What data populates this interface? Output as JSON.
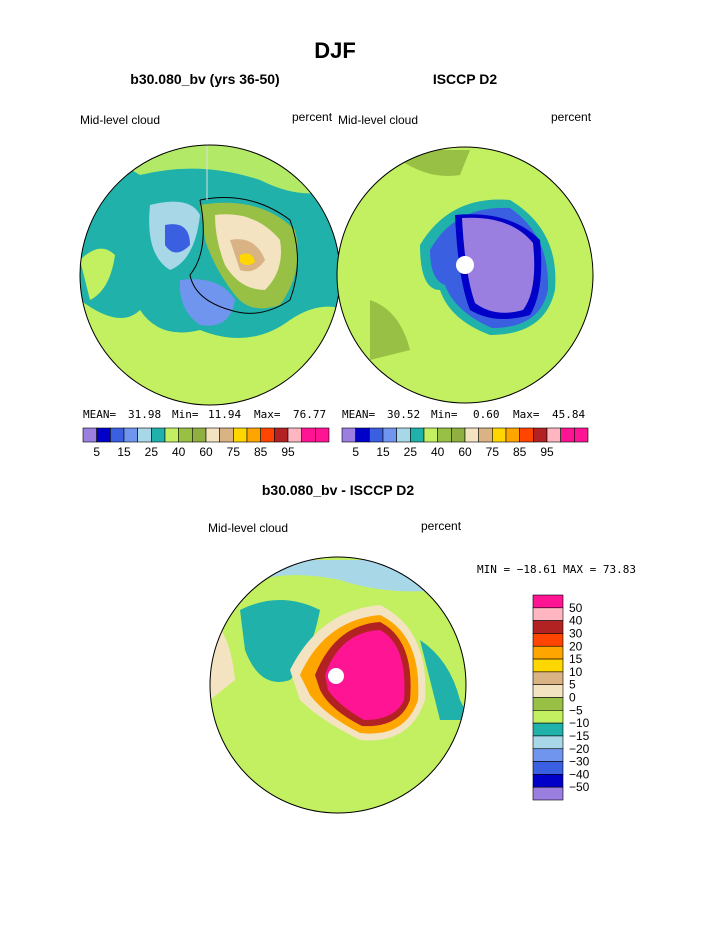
{
  "title": "DJF",
  "panels": [
    {
      "title": "b30.080_bv (yrs 36-50)",
      "left_label": "Mid-level cloud",
      "right_label": "percent",
      "stats": {
        "mean_label": "MEAN=",
        "mean": "31.98",
        "min_label": "Min=",
        "min": "11.94",
        "max_label": "Max=",
        "max": "76.77"
      }
    },
    {
      "title": "ISCCP D2",
      "left_label": "Mid-level cloud",
      "right_label": "percent",
      "stats": {
        "mean_label": "MEAN=",
        "mean": "30.52",
        "min_label": "Min=",
        "min": "0.60",
        "max_label": "Max=",
        "max": "45.84"
      }
    }
  ],
  "colorbar": {
    "labels": [
      5,
      15,
      25,
      40,
      60,
      75,
      85,
      95
    ],
    "colors": [
      "#9b7fe0",
      "#0000c8",
      "#3a5fe0",
      "#6f95ee",
      "#a8d8e8",
      "#20b2aa",
      "#c2f060",
      "#98c045",
      "#8fb040",
      "#f3e3c0",
      "#d9b383",
      "#ffd700",
      "#ffa500",
      "#ff4500",
      "#b22222",
      "#ffb6c1",
      "#ff1493",
      "#ff1493"
    ]
  },
  "difference": {
    "title": "b30.080_bv - ISCCP D2",
    "left_label": "Mid-level cloud",
    "right_label": "percent",
    "range_text": "MIN = −18.61 MAX =  73.83",
    "colorbar": {
      "labels": [
        "50",
        "40",
        "30",
        "20",
        "15",
        "10",
        "5",
        "0",
        "−5",
        "−10",
        "−15",
        "−20",
        "−30",
        "−40",
        "−50"
      ],
      "colors": [
        "#ff1493",
        "#ffb6c1",
        "#b22222",
        "#ff4500",
        "#ffa500",
        "#ffd700",
        "#d9b383",
        "#f3e3c0",
        "#98c045",
        "#c2f060",
        "#20b2aa",
        "#a8d8e8",
        "#6f95ee",
        "#3a5fe0",
        "#0000c8",
        "#9b7fe0"
      ]
    }
  }
}
